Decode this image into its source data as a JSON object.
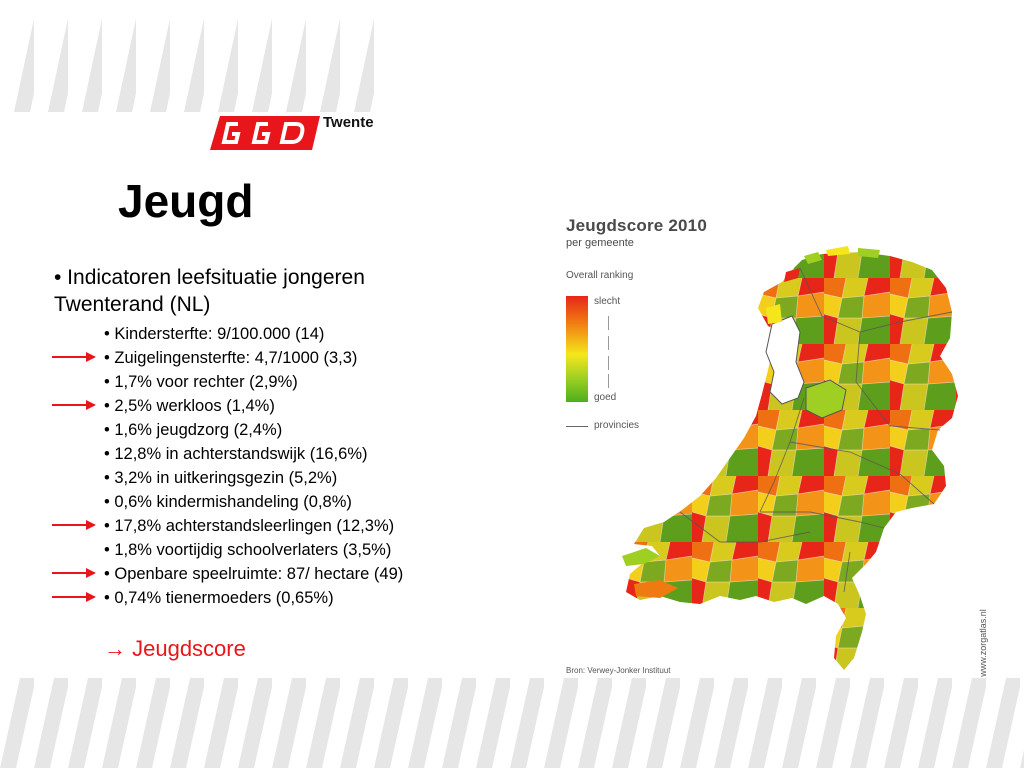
{
  "header": {
    "logo_letters": "GGD",
    "logo_text": "Twente",
    "title": "Jeugd"
  },
  "main_bullet": "• Indicatoren leefsituatie jongeren Twenterand (NL)",
  "indicators": [
    {
      "text": "• Kindersterfte: 9/100.000 (14)",
      "arrow": false
    },
    {
      "text": "• Zuigelingensterfte: 4,7/1000 (3,3)",
      "arrow": true
    },
    {
      "text": "• 1,7% voor rechter (2,9%)",
      "arrow": false
    },
    {
      "text": "• 2,5% werkloos (1,4%)",
      "arrow": true
    },
    {
      "text": "• 1,6% jeugdzorg (2,4%)",
      "arrow": false
    },
    {
      "text": "• 12,8% in achterstandswijk (16,6%)",
      "arrow": false
    },
    {
      "text": "• 3,2% in uitkeringsgezin (5,2%)",
      "arrow": false
    },
    {
      "text": "• 0,6% kindermishandeling (0,8%)",
      "arrow": false
    },
    {
      "text": "• 17,8% achterstandsleerlingen (12,3%)",
      "arrow": true
    },
    {
      "text": "• 1,8% voortijdig schoolverlaters (3,5%)",
      "arrow": false
    },
    {
      "text": "• Openbare speelruimte: 87/ hectare (49)",
      "arrow": true
    },
    {
      "text": "• 0,74% tienermoeders (0,65%)",
      "arrow": true
    }
  ],
  "conclusion": "→ Jeugdscore",
  "map": {
    "title": "Jeugdscore 2010",
    "subtitle": "per gemeente",
    "legend": {
      "heading": "Overall ranking",
      "high_label": "slecht",
      "low_label": "goed",
      "line_label": "provincies"
    },
    "source": "Bron: Verwey-Jonker Instituut",
    "site": "www.zorgatlas.nl"
  },
  "colors": {
    "accent_red": "#e8161a",
    "stripe": "#e6e6e6",
    "scale": [
      "#e8261a",
      "#f07a12",
      "#f5e61c",
      "#9ecf22",
      "#4caf1e"
    ]
  }
}
